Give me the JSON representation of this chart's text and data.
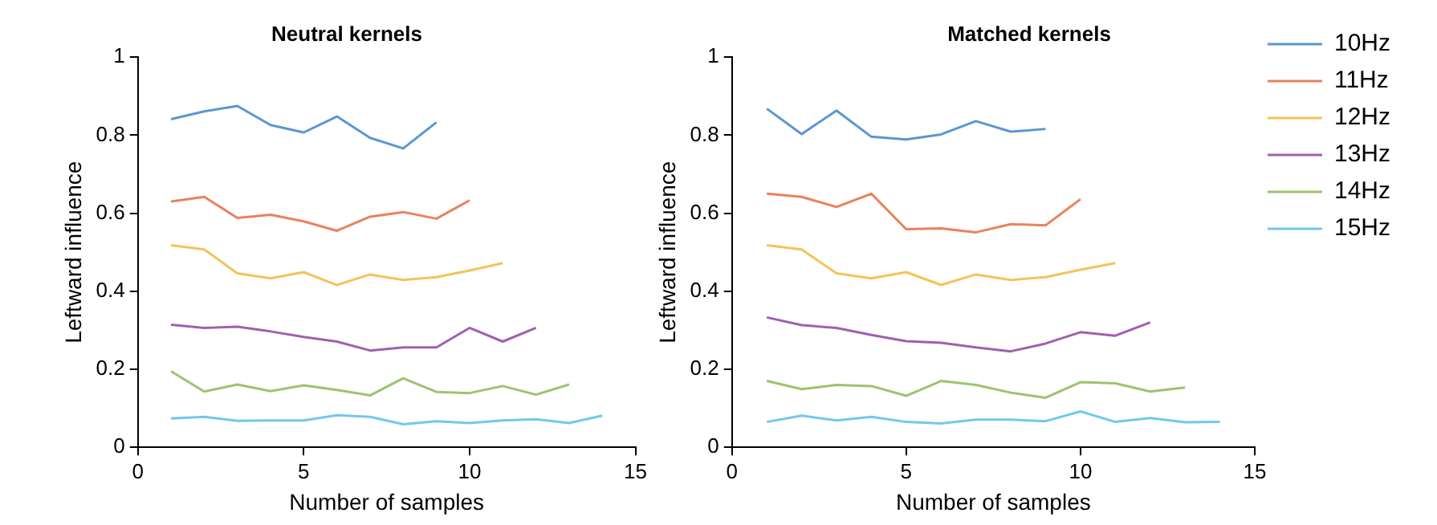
{
  "chart_data": [
    {
      "type": "line",
      "title": "Neutral kernels",
      "xlabel": "Number of samples",
      "ylabel": "Leftward influence",
      "xlim": [
        0,
        15
      ],
      "xticks": [
        0,
        5,
        10,
        15
      ],
      "ylim": [
        0,
        1
      ],
      "yticks": [
        0,
        0.2,
        0.4,
        0.6,
        0.8,
        1
      ],
      "grid": false,
      "legend": false,
      "marker": "none",
      "line_style": "solid",
      "series": [
        {
          "color": "#5b97d2",
          "x": [
            1,
            2,
            3,
            4,
            5,
            6,
            7,
            8,
            9
          ],
          "values": [
            0.841,
            0.861,
            0.875,
            0.826,
            0.807,
            0.848,
            0.793,
            0.766,
            0.833
          ]
        },
        {
          "color": "#e9825b",
          "x": [
            1,
            2,
            3,
            4,
            5,
            6,
            7,
            8,
            9,
            10
          ],
          "values": [
            0.63,
            0.642,
            0.588,
            0.596,
            0.579,
            0.555,
            0.591,
            0.603,
            0.586,
            0.633
          ]
        },
        {
          "color": "#f4c35a",
          "x": [
            1,
            2,
            3,
            4,
            5,
            6,
            7,
            8,
            9,
            10,
            11
          ],
          "values": [
            0.518,
            0.507,
            0.446,
            0.433,
            0.449,
            0.416,
            0.443,
            0.429,
            0.436,
            0.453,
            0.472
          ]
        },
        {
          "color": "#a15fb0",
          "x": [
            1,
            2,
            3,
            4,
            5,
            6,
            7,
            8,
            9,
            10,
            11,
            12
          ],
          "values": [
            0.314,
            0.306,
            0.309,
            0.297,
            0.283,
            0.271,
            0.248,
            0.256,
            0.256,
            0.306,
            0.271,
            0.306
          ]
        },
        {
          "color": "#9cc46c",
          "x": [
            1,
            2,
            3,
            4,
            5,
            6,
            7,
            8,
            9,
            10,
            11,
            12,
            13
          ],
          "values": [
            0.195,
            0.143,
            0.161,
            0.144,
            0.159,
            0.147,
            0.133,
            0.177,
            0.142,
            0.139,
            0.157,
            0.135,
            0.161
          ]
        },
        {
          "color": "#73c7ee",
          "x": [
            1,
            2,
            3,
            4,
            5,
            6,
            7,
            8,
            9,
            10,
            11,
            12,
            13,
            14
          ],
          "values": [
            0.074,
            0.078,
            0.068,
            0.069,
            0.069,
            0.082,
            0.078,
            0.059,
            0.067,
            0.062,
            0.069,
            0.072,
            0.062,
            0.081
          ]
        }
      ]
    },
    {
      "type": "line",
      "title": "Matched kernels",
      "xlabel": "Number of samples",
      "ylabel": "Leftward influence",
      "xlim": [
        0,
        15
      ],
      "xticks": [
        0,
        5,
        10,
        15
      ],
      "ylim": [
        0,
        1
      ],
      "yticks": [
        0,
        0.2,
        0.4,
        0.6,
        0.8,
        1
      ],
      "grid": false,
      "legend": "right",
      "marker": "none",
      "line_style": "solid",
      "series": [
        {
          "name": "10Hz",
          "color": "#5b97d2",
          "x": [
            1,
            2,
            3,
            4,
            5,
            6,
            7,
            8,
            9
          ],
          "values": [
            0.868,
            0.803,
            0.863,
            0.796,
            0.789,
            0.802,
            0.836,
            0.809,
            0.816
          ]
        },
        {
          "name": "11Hz",
          "color": "#e9825b",
          "x": [
            1,
            2,
            3,
            4,
            5,
            6,
            7,
            8,
            9,
            10
          ],
          "values": [
            0.65,
            0.642,
            0.616,
            0.65,
            0.559,
            0.561,
            0.551,
            0.572,
            0.569,
            0.636
          ]
        },
        {
          "name": "12Hz",
          "color": "#f4c35a",
          "x": [
            1,
            2,
            3,
            4,
            5,
            6,
            7,
            8,
            9,
            10,
            11
          ],
          "values": [
            0.518,
            0.507,
            0.446,
            0.433,
            0.449,
            0.416,
            0.443,
            0.429,
            0.436,
            0.455,
            0.472
          ]
        },
        {
          "name": "13Hz",
          "color": "#a15fb0",
          "x": [
            1,
            2,
            3,
            4,
            5,
            6,
            7,
            8,
            9,
            10,
            11,
            12
          ],
          "values": [
            0.333,
            0.313,
            0.306,
            0.288,
            0.272,
            0.268,
            0.256,
            0.246,
            0.266,
            0.295,
            0.286,
            0.32
          ]
        },
        {
          "name": "14Hz",
          "color": "#9cc46c",
          "x": [
            1,
            2,
            3,
            4,
            5,
            6,
            7,
            8,
            9,
            10,
            11,
            12,
            13
          ],
          "values": [
            0.17,
            0.149,
            0.16,
            0.157,
            0.132,
            0.17,
            0.16,
            0.14,
            0.127,
            0.167,
            0.164,
            0.143,
            0.153
          ]
        },
        {
          "name": "15Hz",
          "color": "#73c7ee",
          "x": [
            1,
            2,
            3,
            4,
            5,
            6,
            7,
            8,
            9,
            10,
            11,
            12,
            13,
            14
          ],
          "values": [
            0.065,
            0.081,
            0.069,
            0.078,
            0.065,
            0.061,
            0.071,
            0.071,
            0.067,
            0.092,
            0.065,
            0.075,
            0.064,
            0.065
          ]
        }
      ]
    }
  ]
}
